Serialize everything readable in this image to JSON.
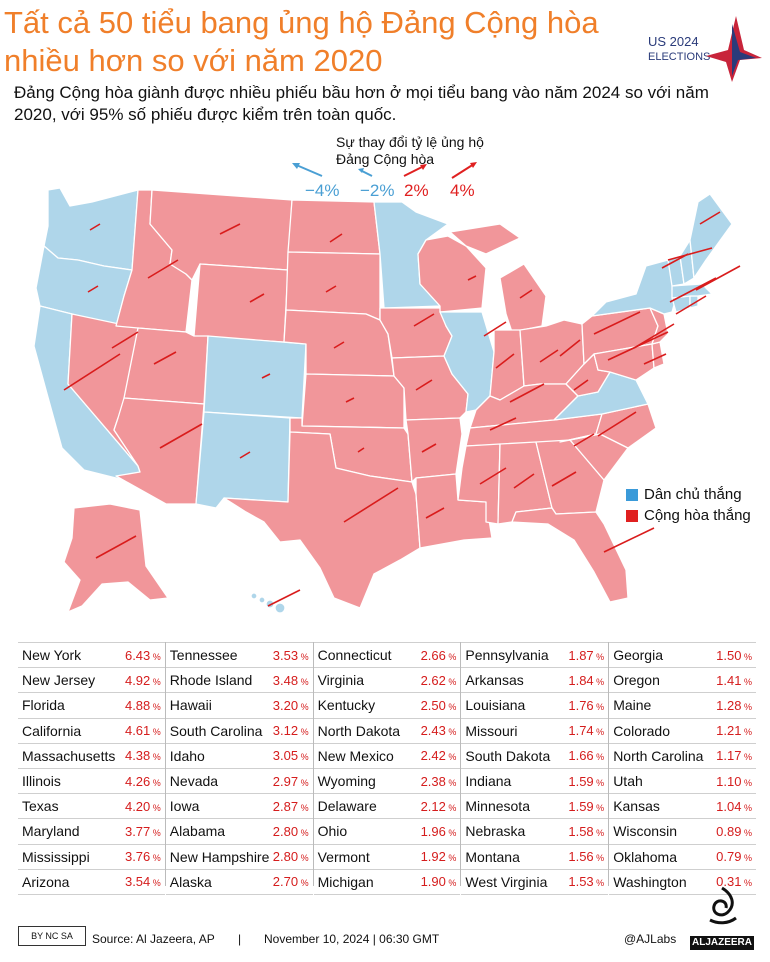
{
  "title": "Tất cả 50 tiểu bang ủng hộ Đảng Cộng hòa nhiều hơn so với năm 2020",
  "subtitle": "Đảng Cộng hòa giành được nhiều phiếu bầu hơn ở mọi tiểu bang vào năm 2024 so với năm 2020, với 95% số phiếu được kiểm trên toàn quốc.",
  "logo": {
    "line1": "US 2024",
    "line2": "ELECTIONS"
  },
  "map_key": {
    "title_line1": "Sự thay đổi tỷ lệ ủng hộ",
    "title_line2": "Đảng Cộng hòa",
    "scale": [
      "−4%",
      "−2%",
      "2%",
      "4%"
    ],
    "scale_colors": [
      "#4a9fd4",
      "#4a9fd4",
      "#e02020",
      "#e02020"
    ]
  },
  "legend": {
    "dem_label": "Dân chủ thắng",
    "rep_label": "Cộng hòa thắng",
    "dem_color": "#3a9ad9",
    "rep_color": "#e02020",
    "dem_fill": "#afd6ea",
    "rep_fill": "#f1969a"
  },
  "table": [
    [
      [
        "New York",
        "6.43"
      ],
      [
        "New Jersey",
        "4.92"
      ],
      [
        "Florida",
        "4.88"
      ],
      [
        "California",
        "4.61"
      ],
      [
        "Massachusetts",
        "4.38"
      ],
      [
        "Illinois",
        "4.26"
      ],
      [
        "Texas",
        "4.20"
      ],
      [
        "Maryland",
        "3.77"
      ],
      [
        "Mississippi",
        "3.76"
      ],
      [
        "Arizona",
        "3.54"
      ]
    ],
    [
      [
        "Tennessee",
        "3.53"
      ],
      [
        "Rhode Island",
        "3.48"
      ],
      [
        "Hawaii",
        "3.20"
      ],
      [
        "South Carolina",
        "3.12"
      ],
      [
        "Idaho",
        "3.05"
      ],
      [
        "Nevada",
        "2.97"
      ],
      [
        "Iowa",
        "2.87"
      ],
      [
        "Alabama",
        "2.80"
      ],
      [
        "New Hampshire",
        "2.80"
      ],
      [
        "Alaska",
        "2.70"
      ]
    ],
    [
      [
        "Connecticut",
        "2.66"
      ],
      [
        "Virginia",
        "2.62"
      ],
      [
        "Kentucky",
        "2.50"
      ],
      [
        "North Dakota",
        "2.43"
      ],
      [
        "New Mexico",
        "2.42"
      ],
      [
        "Wyoming",
        "2.38"
      ],
      [
        "Delaware",
        "2.12"
      ],
      [
        "Ohio",
        "1.96"
      ],
      [
        "Vermont",
        "1.92"
      ],
      [
        "Michigan",
        "1.90"
      ]
    ],
    [
      [
        "Pennsylvania",
        "1.87"
      ],
      [
        "Arkansas",
        "1.84"
      ],
      [
        "Louisiana",
        "1.76"
      ],
      [
        "Missouri",
        "1.74"
      ],
      [
        "South Dakota",
        "1.66"
      ],
      [
        "Indiana",
        "1.59"
      ],
      [
        "Minnesota",
        "1.59"
      ],
      [
        "Nebraska",
        "1.58"
      ],
      [
        "Montana",
        "1.56"
      ],
      [
        "West Virginia",
        "1.53"
      ]
    ],
    [
      [
        "Georgia",
        "1.50"
      ],
      [
        "Oregon",
        "1.41"
      ],
      [
        "Maine",
        "1.28"
      ],
      [
        "Colorado",
        "1.21"
      ],
      [
        "North Carolina",
        "1.17"
      ],
      [
        "Utah",
        "1.10"
      ],
      [
        "Kansas",
        "1.04"
      ],
      [
        "Wisconsin",
        "0.89"
      ],
      [
        "Oklahoma",
        "0.79"
      ],
      [
        "Washington",
        "0.31"
      ]
    ]
  ],
  "footer": {
    "cc_label": "BY NC SA",
    "source": "Source:  Al Jazeera, AP",
    "separator": "|",
    "date": "November 10, 2024 | 06:30 GMT",
    "handle": "@AJLabs",
    "brand": "ALJAZEERA"
  }
}
